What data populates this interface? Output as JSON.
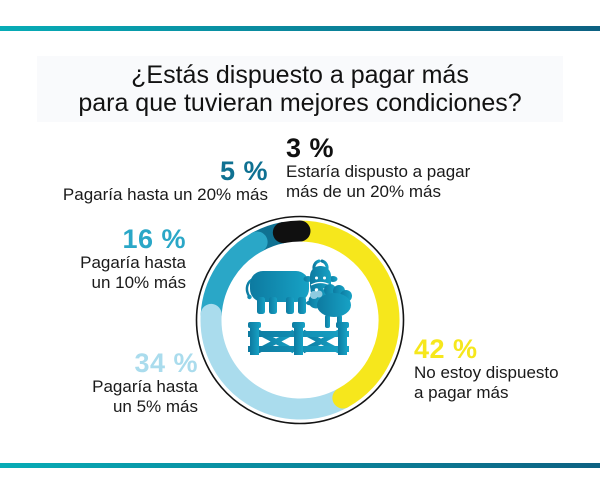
{
  "header": {
    "title_line1": "¿Estás dispuesto a pagar más",
    "title_line2": "para que tuvieran mejores condiciones?"
  },
  "theme": {
    "bar_gradient_left": "#07acb6",
    "bar_gradient_right": "#0d6182",
    "outline_color": "#141414",
    "text_color": "#1a1a1a",
    "icon_gradient_left": "#0d7aa0",
    "icon_gradient_right": "#17a2c5",
    "icon_wool_highlight": "#8ecbe0"
  },
  "chart_data": {
    "type": "pie",
    "subtype": "donut",
    "title": "¿Estás dispuesto a pagar más para que tuvieran mejores condiciones?",
    "unit": "%",
    "direction": "clockwise",
    "start_angle_deg": 0,
    "legend_position": "callouts-around",
    "center_icon": "cow-and-sheep-over-fence",
    "segments": [
      {
        "id": "no",
        "value": 42,
        "display": "42 %",
        "label": "No estoy dispuesto a pagar más",
        "color": "#f6e71c"
      },
      {
        "id": "up5",
        "value": 34,
        "display": "34 %",
        "label": "Pagaría hasta un 5% más",
        "color": "#aadced"
      },
      {
        "id": "up10",
        "value": 16,
        "display": "16 %",
        "label": "Pagaría hasta un 10% más",
        "color": "#2aa7c7"
      },
      {
        "id": "up20",
        "value": 5,
        "display": "5 %",
        "label": "Pagaría hasta un 20% más",
        "color": "#0f7192"
      },
      {
        "id": "over20",
        "value": 3,
        "display": "3 %",
        "label": "Estaría dispusto a pagar más de un 20% más",
        "color": "#101010"
      }
    ]
  },
  "callouts": {
    "up20": {
      "pct": "5 %",
      "line1": "Pagaría hasta un 20% más",
      "line2": ""
    },
    "over20": {
      "pct": "3 %",
      "line1": "Estaría dispusto a pagar",
      "line2": "más de un 20% más"
    },
    "up10": {
      "pct": "16 %",
      "line1": "Pagaría hasta",
      "line2": "un 10% más"
    },
    "up5": {
      "pct": "34 %",
      "line1": "Pagaría hasta",
      "line2": "un 5% más"
    },
    "no": {
      "pct": "42 %",
      "line1": "No estoy dispuesto",
      "line2": "a pagar más"
    }
  }
}
